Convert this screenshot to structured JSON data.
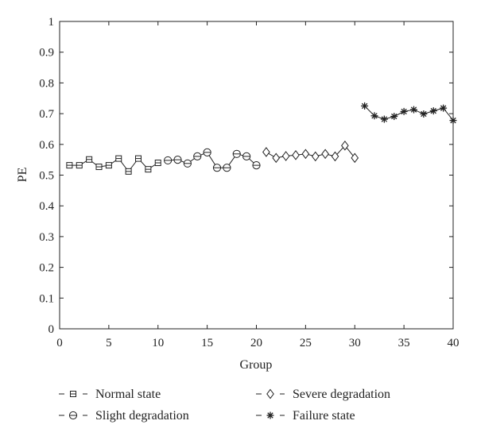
{
  "chart_data": {
    "type": "line",
    "xlabel": "Group",
    "ylabel": "PE",
    "xlim": [
      0,
      40
    ],
    "ylim": [
      0,
      1
    ],
    "xticks": [
      0,
      5,
      10,
      15,
      20,
      25,
      30,
      35,
      40
    ],
    "yticks": [
      0,
      0.1,
      0.2,
      0.3,
      0.4,
      0.5,
      0.6,
      0.7,
      0.8,
      0.9,
      1
    ],
    "ytick_labels": [
      "0",
      "0.1",
      "0.2",
      "0.3",
      "0.4",
      "0.5",
      "0.6",
      "0.7",
      "0.8",
      "0.9",
      "1"
    ],
    "grid": false,
    "legend_position": "bottom",
    "series": [
      {
        "name": "Normal state",
        "marker": "square",
        "x": [
          1,
          2,
          3,
          4,
          5,
          6,
          7,
          8,
          9,
          10
        ],
        "values": [
          0.532,
          0.532,
          0.551,
          0.527,
          0.532,
          0.554,
          0.512,
          0.554,
          0.519,
          0.54
        ]
      },
      {
        "name": "Slight degradation",
        "marker": "circle-dash",
        "x": [
          11,
          12,
          13,
          14,
          15,
          16,
          17,
          18,
          19,
          20
        ],
        "values": [
          0.548,
          0.55,
          0.538,
          0.561,
          0.574,
          0.524,
          0.524,
          0.569,
          0.561,
          0.532
        ]
      },
      {
        "name": "Severe degradation",
        "marker": "diamond",
        "x": [
          21,
          22,
          23,
          24,
          25,
          26,
          27,
          28,
          29,
          30
        ],
        "values": [
          0.575,
          0.556,
          0.562,
          0.565,
          0.569,
          0.561,
          0.569,
          0.561,
          0.596,
          0.556
        ]
      },
      {
        "name": "Failure state",
        "marker": "star",
        "x": [
          31,
          32,
          33,
          34,
          35,
          36,
          37,
          38,
          39,
          40
        ],
        "values": [
          0.725,
          0.693,
          0.682,
          0.691,
          0.707,
          0.713,
          0.699,
          0.709,
          0.718,
          0.678
        ]
      }
    ]
  }
}
